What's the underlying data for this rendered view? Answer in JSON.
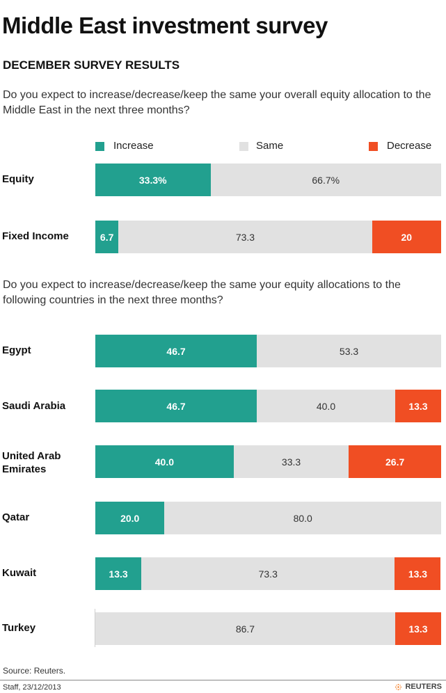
{
  "title": "Middle East investment survey",
  "subtitle": "DECEMBER SURVEY RESULTS",
  "questions": {
    "q1": "Do you expect to increase/decrease/keep the same your overall equity allocation to the Middle East in the next three months?",
    "q2": "Do you expect to increase/decrease/keep the same your equity allocations to the following countries in the next three months?"
  },
  "legend": {
    "increase": "Increase",
    "same": "Same",
    "decrease": "Decrease"
  },
  "colors": {
    "increase": "#22a08f",
    "same": "#e1e1e1",
    "decrease": "#f04e23"
  },
  "chart_data": {
    "type": "bar",
    "orientation": "horizontal",
    "stacked": true,
    "scale": "percent",
    "xlim": [
      0,
      100
    ],
    "categories": [
      "Equity",
      "Fixed Income",
      "Egypt",
      "Saudi Arabia",
      "United Arab Emirates",
      "Qatar",
      "Kuwait",
      "Turkey"
    ],
    "series": [
      {
        "name": "Increase",
        "values": [
          33.3,
          6.7,
          46.7,
          46.7,
          40.0,
          20.0,
          13.3,
          0
        ],
        "labels": [
          "33.3%",
          "6.7",
          "46.7",
          "46.7",
          "40.0",
          "20.0",
          "13.3",
          ""
        ]
      },
      {
        "name": "Same",
        "values": [
          66.7,
          73.3,
          53.3,
          40.0,
          33.3,
          80.0,
          73.3,
          86.7
        ],
        "labels": [
          "66.7%",
          "73.3",
          "53.3",
          "40.0",
          "33.3",
          "80.0",
          "73.3",
          "86.7"
        ]
      },
      {
        "name": "Decrease",
        "values": [
          0,
          20,
          0,
          13.3,
          26.7,
          0,
          13.3,
          13.3
        ],
        "labels": [
          "",
          "20",
          "",
          "13.3",
          "26.7",
          "",
          "13.3",
          "13.3"
        ]
      }
    ],
    "legend_position": "top",
    "grid": false
  },
  "source": "Source: Reuters.",
  "credit": "Staff, 23/12/2013",
  "logo_text": "REUTERS"
}
